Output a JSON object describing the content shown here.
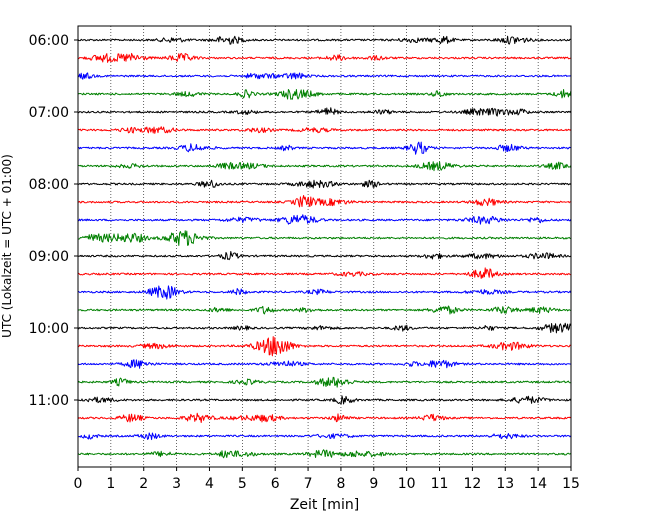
{
  "chart_data": {
    "type": "line",
    "title": "",
    "xlabel": "Zeit  [min]",
    "ylabel": "UTC (Lokalzeit = UTC + 01:00)",
    "xlim": [
      0,
      15
    ],
    "x_ticks": [
      "0",
      "1",
      "2",
      "3",
      "4",
      "5",
      "6",
      "7",
      "8",
      "9",
      "10",
      "11",
      "12",
      "13",
      "14",
      "15"
    ],
    "y_ticks": [
      "06:00",
      "07:00",
      "08:00",
      "09:00",
      "10:00",
      "11:00"
    ],
    "grid": "vertical dotted lines at each minute",
    "trace_interval_minutes": 15,
    "trace_start": "06:00",
    "trace_count": 24,
    "color_cycle": [
      "#000000",
      "#ff0000",
      "#0000ff",
      "#008000"
    ],
    "series": [
      {
        "start": "06:00",
        "color": "#000000"
      },
      {
        "start": "06:15",
        "color": "#ff0000"
      },
      {
        "start": "06:30",
        "color": "#0000ff"
      },
      {
        "start": "06:45",
        "color": "#008000"
      },
      {
        "start": "07:00",
        "color": "#000000"
      },
      {
        "start": "07:15",
        "color": "#ff0000"
      },
      {
        "start": "07:30",
        "color": "#0000ff"
      },
      {
        "start": "07:45",
        "color": "#008000"
      },
      {
        "start": "08:00",
        "color": "#000000"
      },
      {
        "start": "08:15",
        "color": "#ff0000"
      },
      {
        "start": "08:30",
        "color": "#0000ff"
      },
      {
        "start": "08:45",
        "color": "#008000"
      },
      {
        "start": "09:00",
        "color": "#000000"
      },
      {
        "start": "09:15",
        "color": "#ff0000"
      },
      {
        "start": "09:30",
        "color": "#0000ff"
      },
      {
        "start": "09:45",
        "color": "#008000"
      },
      {
        "start": "10:00",
        "color": "#000000"
      },
      {
        "start": "10:15",
        "color": "#ff0000"
      },
      {
        "start": "10:30",
        "color": "#0000ff"
      },
      {
        "start": "10:45",
        "color": "#008000"
      },
      {
        "start": "11:00",
        "color": "#000000"
      },
      {
        "start": "11:15",
        "color": "#ff0000"
      },
      {
        "start": "11:30",
        "color": "#0000ff"
      },
      {
        "start": "11:45",
        "color": "#008000"
      }
    ]
  }
}
